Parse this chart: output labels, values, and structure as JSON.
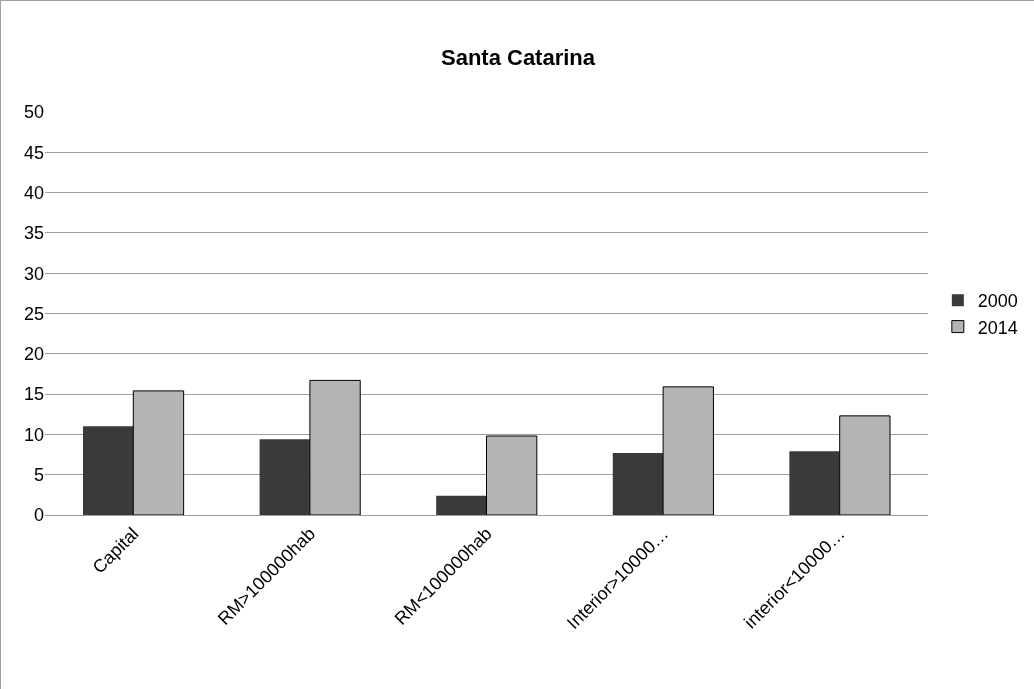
{
  "chart_data": {
    "type": "bar",
    "title": "Santa Catarina",
    "categories": [
      "Capital",
      "RM>100000hab",
      "RM<100000hab",
      "Interior>10000…",
      "interior<10000…"
    ],
    "series": [
      {
        "name": "2000",
        "color": "#3a3a3a",
        "values": [
          11.0,
          9.4,
          2.4,
          7.7,
          7.9
        ]
      },
      {
        "name": "2014",
        "color": "#b4b4b4",
        "values": [
          15.4,
          16.7,
          9.8,
          15.9,
          12.3
        ]
      }
    ],
    "ylim": [
      0,
      50
    ],
    "yticks": [
      0,
      5,
      10,
      15,
      20,
      25,
      30,
      35,
      40,
      45,
      50
    ],
    "grid": "y",
    "legend": "right"
  }
}
